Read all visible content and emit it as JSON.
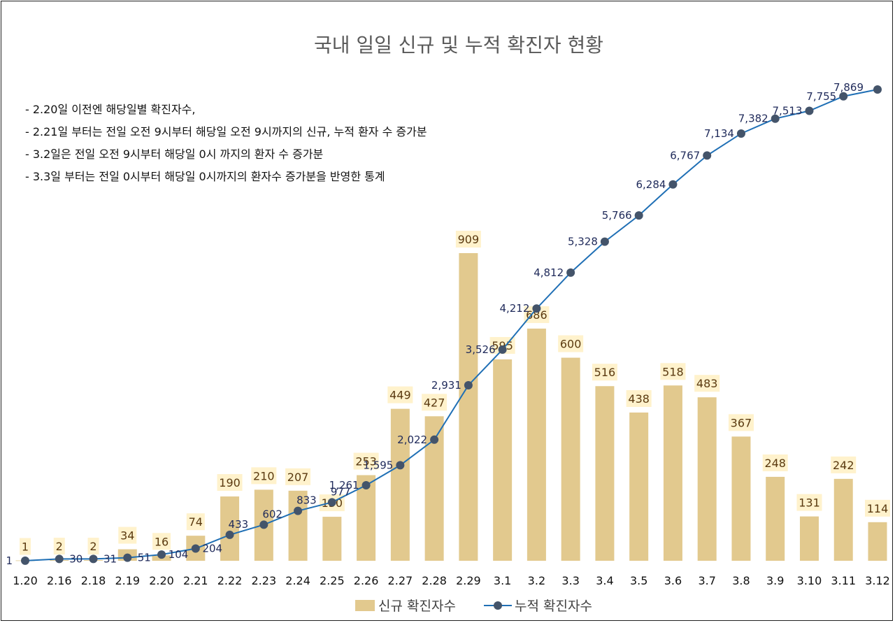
{
  "chart_data": {
    "type": "bar",
    "title": "국내 일일 신규 및 누적 확진자 현황",
    "notes": [
      "- 2.20일 이전엔 해당일별 확진자수,",
      "- 2.21일 부터는 전일 오전 9시부터 해당일 오전 9시까지의 신규, 누적 환자 수 증가분",
      "- 3.2일은 전일 오전 9시부터 해당일 0시 까지의 환자 수 증가분",
      "- 3.3일 부터는 전일 0시부터 해당일 0시까지의 환자수 증가분을 반영한 통계"
    ],
    "categories": [
      "1.20",
      "2.16",
      "2.18",
      "2.19",
      "2.20",
      "2.21",
      "2.22",
      "2.23",
      "2.24",
      "2.25",
      "2.26",
      "2.27",
      "2.28",
      "2.29",
      "3.1",
      "3.2",
      "3.3",
      "3.4",
      "3.5",
      "3.6",
      "3.7",
      "3.8",
      "3.9",
      "3.10",
      "3.11",
      "3.12"
    ],
    "series": [
      {
        "name": "신규 확진자수",
        "type": "bar",
        "color": "#e2c98e",
        "label_bg": "#fff2cc",
        "values": [
          1,
          2,
          2,
          34,
          16,
          74,
          190,
          210,
          207,
          130,
          253,
          449,
          427,
          909,
          595,
          686,
          600,
          516,
          438,
          518,
          483,
          367,
          248,
          131,
          242,
          114
        ],
        "labels": [
          "1",
          "2",
          "2",
          "34",
          "16",
          "74",
          "190",
          "210",
          "207",
          "130",
          "253",
          "449",
          "427",
          "909",
          "595",
          "686",
          "600",
          "516",
          "438",
          "518",
          "483",
          "367",
          "248",
          "131",
          "242",
          "114"
        ]
      },
      {
        "name": "누적 확진자수",
        "type": "line",
        "color": "#1f6fb5",
        "marker_color": "#44546a",
        "values": [
          1,
          30,
          31,
          51,
          104,
          204,
          433,
          602,
          833,
          977,
          1261,
          1595,
          2022,
          2931,
          3526,
          4212,
          4812,
          5328,
          5766,
          6284,
          6767,
          7134,
          7382,
          7513,
          7755,
          7869
        ],
        "labels": [
          "1",
          "30",
          "31",
          "51",
          "104",
          "204",
          "433",
          "602",
          "833",
          "977",
          "1,261",
          "1,595",
          "2,022",
          "2,931",
          "3,526",
          "4,212",
          "4,812",
          "5,328",
          "5,766",
          "6,284",
          "6,767",
          "7,134",
          "7,382",
          "7,513",
          "7,755",
          "7,869"
        ]
      }
    ],
    "bar_ylim": [
      0,
      1200
    ],
    "line_ylim": [
      0,
      8000
    ],
    "grid": false,
    "legend_position": "bottom"
  }
}
